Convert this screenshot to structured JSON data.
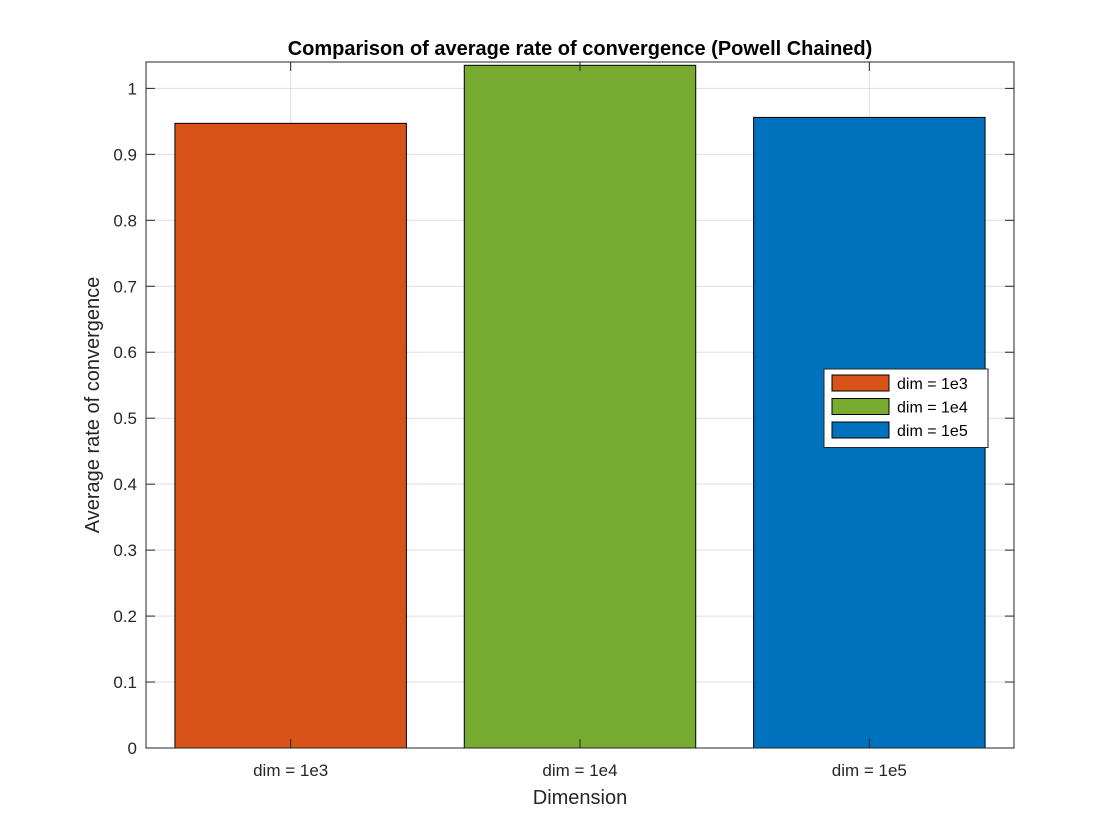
{
  "chart_data": {
    "type": "bar",
    "title": "Comparison of average rate of convergence (Powell Chained)",
    "xlabel": "Dimension",
    "ylabel": "Average rate of convergence",
    "categories": [
      "dim = 1e3",
      "dim = 1e4",
      "dim = 1e5"
    ],
    "values": [
      0.947,
      1.035,
      0.956
    ],
    "colors": [
      "#D95319",
      "#77AC30",
      "#0072BD"
    ],
    "ylim": [
      0,
      1.04
    ],
    "yticks": [
      0,
      0.1,
      0.2,
      0.3,
      0.4,
      0.5,
      0.6,
      0.7,
      0.8,
      0.9,
      1
    ],
    "ytick_labels": [
      "0",
      "0.1",
      "0.2",
      "0.3",
      "0.4",
      "0.5",
      "0.6",
      "0.7",
      "0.8",
      "0.9",
      "1"
    ],
    "grid": true,
    "legend": {
      "position": "right",
      "entries": [
        "dim = 1e3",
        "dim = 1e4",
        "dim = 1e5"
      ]
    }
  }
}
